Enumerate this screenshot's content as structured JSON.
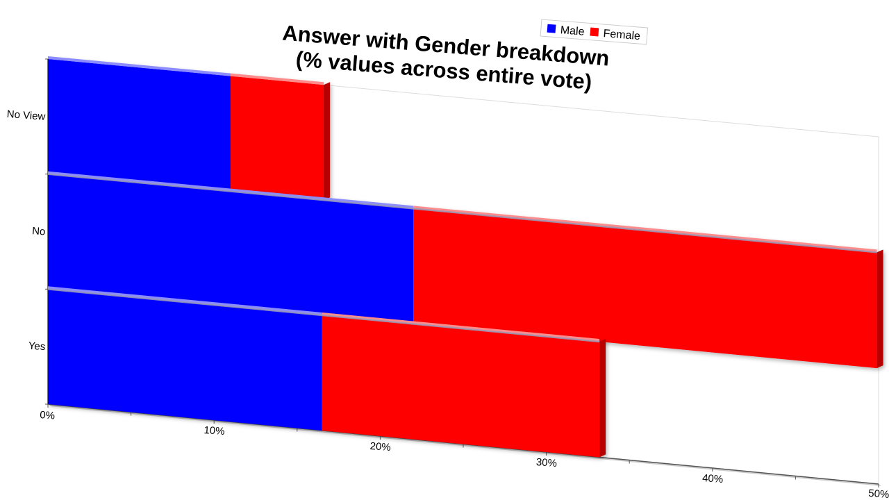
{
  "chart_data": {
    "type": "bar",
    "orientation": "horizontal",
    "stacked": true,
    "style": "3d",
    "title_lines": [
      "Answer with Gender breakdown",
      "(% values across entire vote)"
    ],
    "categories": [
      "No View",
      "No",
      "Yes"
    ],
    "series": [
      {
        "name": "Male",
        "color": "#0000ff",
        "values": [
          11,
          22,
          16.5
        ]
      },
      {
        "name": "Female",
        "color": "#ff0000",
        "values": [
          5.6,
          27.9,
          16.7
        ]
      }
    ],
    "xlim": [
      0,
      50
    ],
    "x_ticks": [
      "0%",
      "10%",
      "20%",
      "30%",
      "40%",
      "50%"
    ],
    "legend_position": "top",
    "grid": false
  }
}
